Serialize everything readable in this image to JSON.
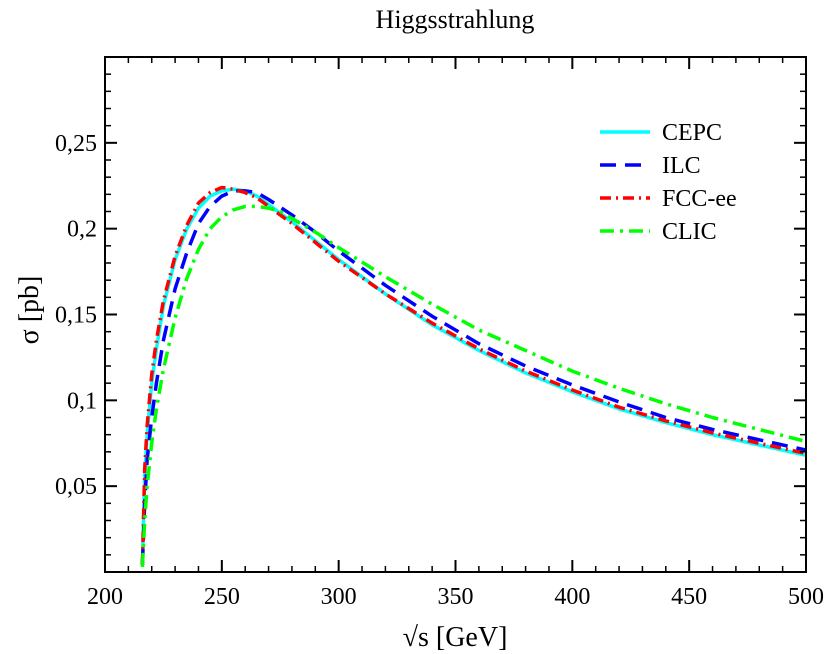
{
  "chart_data": {
    "type": "line",
    "title": "Higgsstrahlung",
    "xlabel": "√s [GeV]",
    "ylabel": "σ [pb]",
    "xlim": [
      200,
      500
    ],
    "ylim": [
      0,
      0.3
    ],
    "x_ticks": [
      200,
      250,
      300,
      350,
      400,
      450,
      500
    ],
    "x_tick_labels": [
      "200",
      "250",
      "300",
      "350",
      "400",
      "450",
      "500"
    ],
    "y_ticks": [
      0.05,
      0.1,
      0.15,
      0.2,
      0.25
    ],
    "y_tick_labels": [
      "0,05",
      "0,1",
      "0,15",
      "0,2",
      "0,25"
    ],
    "legend_position": "top-right",
    "grid": false,
    "series": [
      {
        "name": "CEPC",
        "color": "#00ffff",
        "dash": "solid",
        "x": [
          216,
          217,
          218,
          220,
          222,
          225,
          230,
          235,
          240,
          245,
          250,
          255,
          260,
          265,
          270,
          280,
          290,
          300,
          320,
          340,
          360,
          380,
          400,
          420,
          440,
          460,
          480,
          500
        ],
        "y": [
          0.004,
          0.055,
          0.08,
          0.11,
          0.13,
          0.155,
          0.182,
          0.2,
          0.212,
          0.219,
          0.222,
          0.223,
          0.222,
          0.219,
          0.214,
          0.204,
          0.193,
          0.182,
          0.162,
          0.144,
          0.129,
          0.116,
          0.105,
          0.095,
          0.087,
          0.08,
          0.074,
          0.068
        ]
      },
      {
        "name": "ILC",
        "color": "#0000ff",
        "dash": "long-dash",
        "x": [
          216,
          217,
          218,
          220,
          222,
          225,
          230,
          235,
          240,
          245,
          250,
          255,
          260,
          265,
          270,
          280,
          290,
          300,
          320,
          340,
          360,
          380,
          400,
          420,
          440,
          460,
          480,
          500
        ],
        "y": [
          0.004,
          0.04,
          0.065,
          0.09,
          0.11,
          0.135,
          0.165,
          0.186,
          0.203,
          0.213,
          0.219,
          0.222,
          0.222,
          0.221,
          0.217,
          0.208,
          0.198,
          0.187,
          0.167,
          0.149,
          0.133,
          0.12,
          0.109,
          0.099,
          0.09,
          0.083,
          0.077,
          0.071
        ]
      },
      {
        "name": "FCC-ee",
        "color": "#ff0000",
        "dash": "dash-dot",
        "x": [
          216,
          217,
          218,
          220,
          222,
          225,
          230,
          235,
          240,
          245,
          250,
          255,
          260,
          265,
          270,
          280,
          290,
          300,
          320,
          340,
          360,
          380,
          400,
          420,
          440,
          460,
          480,
          500
        ],
        "y": [
          0.004,
          0.06,
          0.085,
          0.115,
          0.135,
          0.158,
          0.184,
          0.202,
          0.215,
          0.221,
          0.224,
          0.223,
          0.221,
          0.218,
          0.213,
          0.203,
          0.192,
          0.181,
          0.162,
          0.145,
          0.13,
          0.117,
          0.106,
          0.096,
          0.088,
          0.081,
          0.075,
          0.069
        ]
      },
      {
        "name": "CLIC",
        "color": "#00ff00",
        "dash": "dash-dot-long",
        "x": [
          216,
          217,
          218,
          220,
          222,
          225,
          230,
          235,
          240,
          245,
          250,
          255,
          260,
          265,
          270,
          275,
          280,
          290,
          300,
          320,
          340,
          360,
          380,
          400,
          420,
          440,
          460,
          480,
          500
        ],
        "y": [
          0.003,
          0.03,
          0.05,
          0.075,
          0.095,
          0.118,
          0.148,
          0.171,
          0.188,
          0.2,
          0.207,
          0.211,
          0.213,
          0.213,
          0.212,
          0.21,
          0.206,
          0.198,
          0.189,
          0.172,
          0.156,
          0.141,
          0.129,
          0.117,
          0.107,
          0.098,
          0.09,
          0.083,
          0.076
        ]
      }
    ]
  }
}
